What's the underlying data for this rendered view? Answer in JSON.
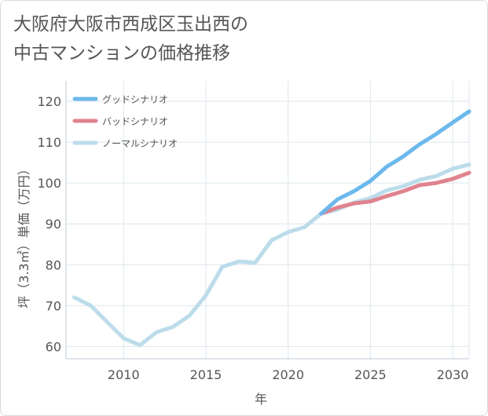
{
  "title": "大阪府大阪市西成区玉出西の\n中古マンションの価格推移",
  "chart_data": {
    "type": "line",
    "xlabel": "年",
    "ylabel": "坪（3.3㎡）単価（万円）",
    "xlim": [
      2006.5,
      2031
    ],
    "ylim": [
      57,
      125
    ],
    "xticks": [
      2010,
      2015,
      2020,
      2025,
      2030
    ],
    "yticks": [
      60,
      70,
      80,
      90,
      100,
      110,
      120
    ],
    "grid": true,
    "legend_position": "top-left",
    "series": [
      {
        "name": "グッドシナリオ",
        "color": "#6cb8ec",
        "x": [
          2022,
          2023,
          2024,
          2025,
          2026,
          2027,
          2028,
          2029,
          2030,
          2031
        ],
        "y": [
          92.5,
          96,
          98,
          100.5,
          104,
          106.5,
          109.5,
          112,
          114.8,
          117.5
        ]
      },
      {
        "name": "バッドシナリオ",
        "color": "#e0838f",
        "x": [
          2022,
          2023,
          2024,
          2025,
          2026,
          2027,
          2028,
          2029,
          2030,
          2031
        ],
        "y": [
          92.5,
          94,
          95,
          95.5,
          96.8,
          98,
          99.5,
          100,
          101,
          102.5
        ]
      },
      {
        "name": "ノーマルシナリオ",
        "color": "#bcdcea",
        "x": [
          2007,
          2008,
          2009,
          2010,
          2011,
          2012,
          2013,
          2014,
          2015,
          2016,
          2017,
          2018,
          2019,
          2020,
          2021,
          2022,
          2023,
          2024,
          2025,
          2026,
          2027,
          2028,
          2029,
          2030,
          2031
        ],
        "y": [
          72,
          70,
          66,
          62,
          60.3,
          63.5,
          64.8,
          67.5,
          72.5,
          79.5,
          80.8,
          80.5,
          86,
          88,
          89.2,
          92.5,
          93.5,
          95.2,
          96.3,
          98.2,
          99.2,
          100.8,
          101.7,
          103.5,
          104.5
        ]
      }
    ]
  }
}
